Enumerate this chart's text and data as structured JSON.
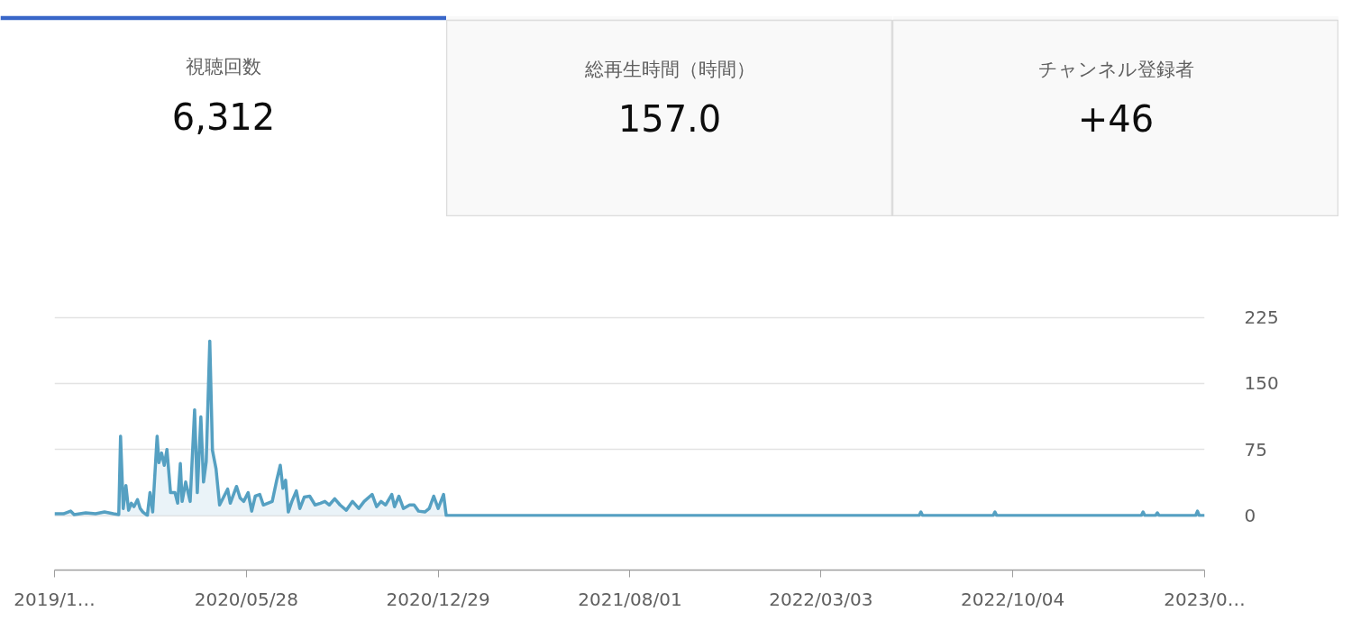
{
  "chart_data": [
    {
      "type": "other",
      "title": "視聴回数",
      "annotations": [
        "6,312"
      ]
    },
    {
      "type": "other",
      "title": "総再生時間（時間）",
      "annotations": [
        "157.0"
      ]
    },
    {
      "type": "other",
      "title": "チャンネル登録者",
      "annotations": [
        "+46"
      ]
    },
    {
      "type": "area",
      "color": "#55a0c2",
      "x": [
        "2019-10-26",
        "2019-11-05",
        "2019-11-13",
        "2019-11-17",
        "2019-11-30",
        "2019-12-11",
        "2019-12-21",
        "2019-12-31",
        "2020-01-06",
        "2020-01-08",
        "2020-01-11",
        "2020-01-14",
        "2020-01-17",
        "2020-01-20",
        "2020-01-23",
        "2020-01-27",
        "2020-01-30",
        "2020-02-02",
        "2020-02-07",
        "2020-02-10",
        "2020-02-13",
        "2020-02-18",
        "2020-02-20",
        "2020-02-23",
        "2020-02-26",
        "2020-02-29",
        "2020-03-04",
        "2020-03-09",
        "2020-03-12",
        "2020-03-15",
        "2020-03-17",
        "2020-03-21",
        "2020-03-26",
        "2020-03-31",
        "2020-04-03",
        "2020-04-07",
        "2020-04-10",
        "2020-04-13",
        "2020-04-17",
        "2020-04-20",
        "2020-04-24",
        "2020-04-28",
        "2020-05-02",
        "2020-05-07",
        "2020-05-10",
        "2020-05-17",
        "2020-05-21",
        "2020-05-25",
        "2020-05-30",
        "2020-06-03",
        "2020-06-07",
        "2020-06-12",
        "2020-06-16",
        "2020-06-21",
        "2020-06-26",
        "2020-07-01",
        "2020-07-05",
        "2020-07-08",
        "2020-07-11",
        "2020-07-14",
        "2020-07-18",
        "2020-07-23",
        "2020-07-27",
        "2020-08-01",
        "2020-08-07",
        "2020-08-13",
        "2020-08-19",
        "2020-08-24",
        "2020-08-29",
        "2020-09-04",
        "2020-09-10",
        "2020-09-17",
        "2020-09-24",
        "2020-10-01",
        "2020-10-07",
        "2020-10-16",
        "2020-10-21",
        "2020-10-26",
        "2020-10-31",
        "2020-11-07",
        "2020-11-10",
        "2020-11-15",
        "2020-11-20",
        "2020-11-27",
        "2020-12-02",
        "2020-12-07",
        "2020-12-14",
        "2020-12-19",
        "2020-12-24",
        "2020-12-29",
        "2021-01-04",
        "2021-01-07",
        "2022-06-21",
        "2022-06-23",
        "2022-06-25",
        "2022-09-12",
        "2022-09-14",
        "2022-09-16",
        "2023-02-25",
        "2023-02-27",
        "2023-03-01",
        "2023-03-13",
        "2023-03-15",
        "2023-03-17",
        "2023-04-27",
        "2023-04-29",
        "2023-05-01",
        "2023-05-07"
      ],
      "values": [
        2,
        2,
        5,
        1,
        3,
        2,
        4,
        2,
        1,
        90,
        8,
        34,
        6,
        14,
        10,
        18,
        8,
        4,
        0,
        26,
        4,
        90,
        60,
        71,
        57,
        75,
        26,
        26,
        14,
        59,
        16,
        38,
        16,
        120,
        26,
        112,
        38,
        61,
        198,
        74,
        53,
        12,
        20,
        30,
        14,
        33,
        20,
        16,
        26,
        5,
        22,
        24,
        12,
        14,
        16,
        40,
        57,
        31,
        40,
        4,
        16,
        28,
        8,
        21,
        22,
        12,
        14,
        16,
        12,
        19,
        12,
        6,
        16,
        8,
        16,
        24,
        10,
        16,
        12,
        24,
        10,
        22,
        8,
        12,
        12,
        5,
        4,
        8,
        22,
        8,
        24,
        0,
        0,
        4,
        0,
        0,
        4,
        0,
        0,
        4,
        0,
        0,
        3,
        0,
        0,
        5,
        0,
        0
      ],
      "xlim": [
        "2019-10-26",
        "2023-05-07"
      ],
      "xticks": [
        {
          "value": "2019-10-26",
          "label": "2019/1…"
        },
        {
          "value": "2020-05-28",
          "label": "2020/05/28"
        },
        {
          "value": "2020-12-29",
          "label": "2020/12/29"
        },
        {
          "value": "2021-08-01",
          "label": "2021/08/01"
        },
        {
          "value": "2022-03-03",
          "label": "2022/03/03"
        },
        {
          "value": "2022-10-04",
          "label": "2022/10/04"
        },
        {
          "value": "2023-05-07",
          "label": "2023/0…"
        }
      ],
      "ylim": [
        0,
        225
      ],
      "yticks": [
        0,
        75,
        150,
        225
      ],
      "grid": "y"
    }
  ]
}
